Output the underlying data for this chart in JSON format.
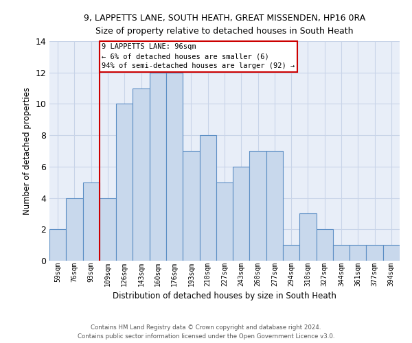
{
  "title_line1": "9, LAPPETTS LANE, SOUTH HEATH, GREAT MISSENDEN, HP16 0RA",
  "title_line2": "Size of property relative to detached houses in South Heath",
  "xlabel": "Distribution of detached houses by size in South Heath",
  "ylabel": "Number of detached properties",
  "categories": [
    "59sqm",
    "76sqm",
    "93sqm",
    "109sqm",
    "126sqm",
    "143sqm",
    "160sqm",
    "176sqm",
    "193sqm",
    "210sqm",
    "227sqm",
    "243sqm",
    "260sqm",
    "277sqm",
    "294sqm",
    "310sqm",
    "327sqm",
    "344sqm",
    "361sqm",
    "377sqm",
    "394sqm"
  ],
  "values": [
    2,
    4,
    5,
    4,
    10,
    11,
    12,
    12,
    7,
    8,
    5,
    6,
    7,
    7,
    1,
    3,
    2,
    1,
    1,
    1,
    1
  ],
  "bar_color": "#c8d8ec",
  "bar_edge_color": "#5b8ec4",
  "annotation_text": "9 LAPPETTS LANE: 96sqm\n← 6% of detached houses are smaller (6)\n94% of semi-detached houses are larger (92) →",
  "vline_color": "#cc0000",
  "annotation_box_color": "#ffffff",
  "annotation_box_edge_color": "#cc0000",
  "grid_color": "#c8d4e8",
  "background_color": "#e8eef8",
  "footer_line1": "Contains HM Land Registry data © Crown copyright and database right 2024.",
  "footer_line2": "Contains public sector information licensed under the Open Government Licence v3.0.",
  "ylim": [
    0,
    14
  ],
  "yticks": [
    0,
    2,
    4,
    6,
    8,
    10,
    12,
    14
  ]
}
